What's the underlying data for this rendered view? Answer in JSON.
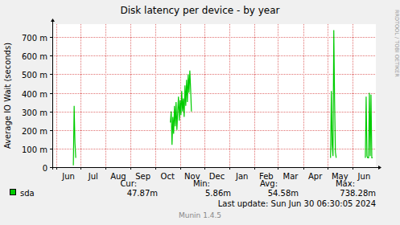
{
  "chart_data": {
    "type": "line",
    "title": "Disk latency per device - by year",
    "y_label": "Average IO Wait (seconds)",
    "x": [
      26,
      27,
      28,
      29,
      80,
      146,
      147,
      148,
      149,
      150,
      151,
      152,
      153,
      154,
      155,
      156,
      157,
      158,
      159,
      160,
      161,
      162,
      163,
      164,
      165,
      166,
      167,
      168,
      169,
      170,
      171,
      172,
      250,
      344,
      345,
      346,
      347,
      348,
      349,
      350,
      351,
      370,
      387,
      388,
      389,
      390,
      391,
      392,
      393,
      394,
      395,
      396
    ],
    "series": [
      {
        "name": "sda",
        "color": "#00cc00",
        "values": [
          0.01,
          0.33,
          0.13,
          0.05,
          null,
          0.24,
          0.3,
          0.12,
          0.27,
          0.18,
          0.33,
          0.22,
          0.35,
          0.2,
          0.3,
          0.38,
          0.25,
          0.36,
          0.28,
          0.41,
          0.3,
          0.37,
          0.27,
          0.44,
          0.33,
          0.47,
          0.35,
          0.5,
          0.4,
          0.52,
          0.42,
          0.3,
          null,
          0.05,
          0.41,
          0.12,
          0.06,
          0.738,
          0.35,
          0.08,
          0.05,
          null,
          0.05,
          0.38,
          0.06,
          0.05,
          0.05,
          0.4,
          0.06,
          0.39,
          0.05,
          0.05
        ]
      }
    ],
    "xlim": [
      0,
      400
    ],
    "xticks": [
      {
        "value": 5,
        "label": "Jun"
      },
      {
        "value": 35,
        "label": "Jul"
      },
      {
        "value": 66,
        "label": "Aug"
      },
      {
        "value": 97,
        "label": "Sep"
      },
      {
        "value": 127,
        "label": "Oct"
      },
      {
        "value": 158,
        "label": "Nov"
      },
      {
        "value": 188,
        "label": "Dec"
      },
      {
        "value": 219,
        "label": "Jan"
      },
      {
        "value": 250,
        "label": "Feb"
      },
      {
        "value": 279,
        "label": "Mar"
      },
      {
        "value": 310,
        "label": "Apr"
      },
      {
        "value": 340,
        "label": "May"
      },
      {
        "value": 371,
        "label": "Jun"
      }
    ],
    "ylim": [
      0,
      0.77
    ],
    "yticks": [
      0,
      {
        "value": 0.1,
        "label": "100 m"
      },
      {
        "value": 0.2,
        "label": "200 m"
      },
      {
        "value": 0.3,
        "label": "300 m"
      },
      {
        "value": 0.4,
        "label": "400 m"
      },
      {
        "value": 0.5,
        "label": "500 m"
      },
      {
        "value": 0.6,
        "label": "600 m"
      },
      {
        "value": 0.7,
        "label": "700 m"
      }
    ],
    "grid": true,
    "legend_stats": {
      "headers": [
        "Cur:",
        "Min:",
        "Avg:",
        "Max:"
      ],
      "values": [
        "47.87m",
        "5.86m",
        "54.58m",
        "738.28m"
      ]
    },
    "last_update": "Last update: Sun Jun 30 06:30:05 2024",
    "footer": "Munin 1.4.5",
    "watermark": "RRDTOOL / TOBI OETIKER"
  }
}
